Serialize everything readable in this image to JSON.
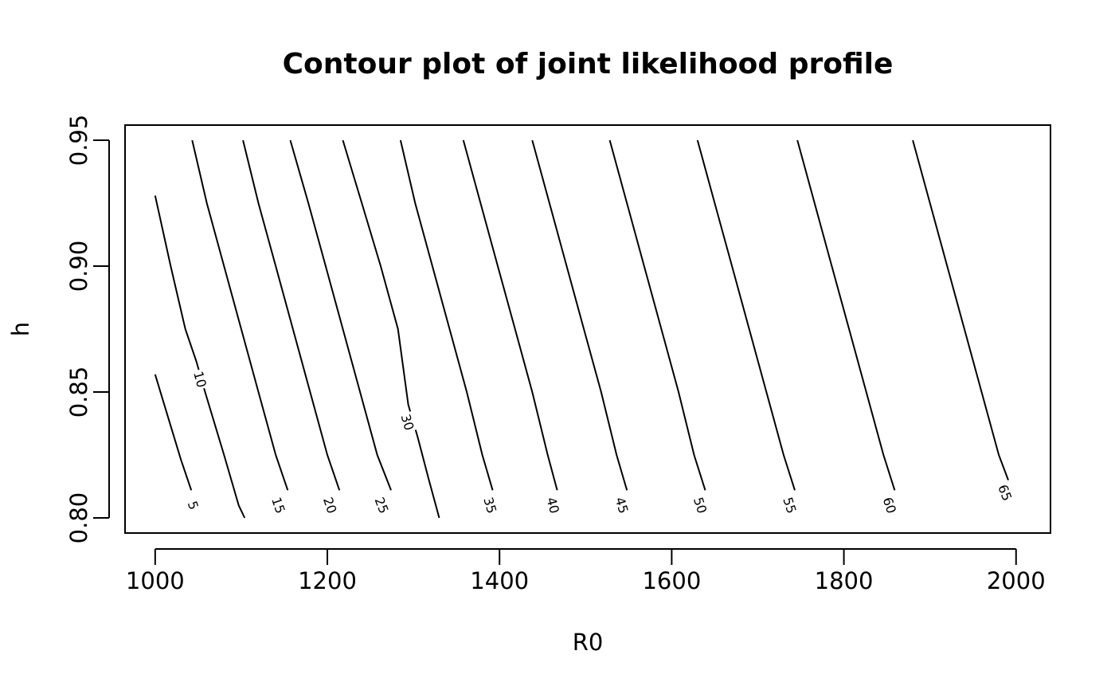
{
  "chart_data": {
    "type": "contour",
    "title": "Contour plot of joint likelihood profile",
    "xlabel": "R0",
    "ylabel": "h",
    "xlim": [
      965,
      2040
    ],
    "ylim": [
      0.794,
      0.956
    ],
    "xticks": [
      1000,
      1200,
      1400,
      1600,
      1800,
      2000
    ],
    "yticks": [
      0.8,
      0.85,
      0.9,
      0.95
    ],
    "xtick_labels": [
      "1000",
      "1200",
      "1400",
      "1600",
      "1800",
      "2000"
    ],
    "ytick_labels": [
      "0.80",
      "0.85",
      "0.90",
      "0.95"
    ],
    "grid": false,
    "contours": [
      {
        "level": 5,
        "label": "5",
        "label_at": [
          1044,
          0.805
        ],
        "points": [
          [
            1000,
            0.857
          ],
          [
            1015,
            0.84
          ],
          [
            1030,
            0.823
          ],
          [
            1042,
            0.811
          ]
        ]
      },
      {
        "level": 10,
        "label": "10",
        "label_at": [
          1052,
          0.855
        ],
        "points": [
          [
            1000,
            0.928
          ],
          [
            1018,
            0.9
          ],
          [
            1035,
            0.875
          ],
          [
            1048,
            0.862
          ],
          [
            1058,
            0.85
          ],
          [
            1080,
            0.825
          ],
          [
            1097,
            0.805
          ],
          [
            1104,
            0.8
          ]
        ]
      },
      {
        "level": 15,
        "label": "15",
        "label_at": [
          1143,
          0.805
        ],
        "points": [
          [
            1043,
            0.95
          ],
          [
            1060,
            0.925
          ],
          [
            1080,
            0.9
          ],
          [
            1100,
            0.875
          ],
          [
            1120,
            0.85
          ],
          [
            1140,
            0.825
          ],
          [
            1154,
            0.811
          ]
        ]
      },
      {
        "level": 20,
        "label": "20",
        "label_at": [
          1203,
          0.805
        ],
        "points": [
          [
            1102,
            0.95
          ],
          [
            1120,
            0.925
          ],
          [
            1140,
            0.9
          ],
          [
            1160,
            0.875
          ],
          [
            1180,
            0.85
          ],
          [
            1200,
            0.825
          ],
          [
            1214,
            0.811
          ]
        ]
      },
      {
        "level": 25,
        "label": "25",
        "label_at": [
          1263,
          0.805
        ],
        "points": [
          [
            1157,
            0.95
          ],
          [
            1178,
            0.925
          ],
          [
            1198,
            0.9
          ],
          [
            1218,
            0.875
          ],
          [
            1238,
            0.85
          ],
          [
            1258,
            0.825
          ],
          [
            1274,
            0.811
          ]
        ]
      },
      {
        "level": 30,
        "label": "30",
        "label_at": [
          1293,
          0.838
        ],
        "points": [
          [
            1218,
            0.95
          ],
          [
            1240,
            0.925
          ],
          [
            1262,
            0.9
          ],
          [
            1282,
            0.875
          ],
          [
            1294,
            0.845
          ],
          [
            1305,
            0.832
          ],
          [
            1318,
            0.815
          ],
          [
            1330,
            0.8
          ]
        ]
      },
      {
        "level": 35,
        "label": "35",
        "label_at": [
          1389,
          0.805
        ],
        "points": [
          [
            1285,
            0.95
          ],
          [
            1302,
            0.925
          ],
          [
            1322,
            0.9
          ],
          [
            1342,
            0.875
          ],
          [
            1362,
            0.85
          ],
          [
            1380,
            0.825
          ],
          [
            1392,
            0.811
          ]
        ]
      },
      {
        "level": 40,
        "label": "40",
        "label_at": [
          1462,
          0.805
        ],
        "points": [
          [
            1358,
            0.95
          ],
          [
            1378,
            0.925
          ],
          [
            1398,
            0.9
          ],
          [
            1418,
            0.875
          ],
          [
            1438,
            0.85
          ],
          [
            1456,
            0.825
          ],
          [
            1467,
            0.811
          ]
        ]
      },
      {
        "level": 45,
        "label": "45",
        "label_at": [
          1542,
          0.805
        ],
        "points": [
          [
            1438,
            0.95
          ],
          [
            1458,
            0.925
          ],
          [
            1478,
            0.9
          ],
          [
            1498,
            0.875
          ],
          [
            1518,
            0.85
          ],
          [
            1536,
            0.825
          ],
          [
            1548,
            0.811
          ]
        ]
      },
      {
        "level": 50,
        "label": "50",
        "label_at": [
          1633,
          0.805
        ],
        "points": [
          [
            1528,
            0.95
          ],
          [
            1548,
            0.925
          ],
          [
            1568,
            0.9
          ],
          [
            1588,
            0.875
          ],
          [
            1608,
            0.85
          ],
          [
            1626,
            0.825
          ],
          [
            1639,
            0.811
          ]
        ]
      },
      {
        "level": 55,
        "label": "55",
        "label_at": [
          1737,
          0.805
        ],
        "points": [
          [
            1630,
            0.95
          ],
          [
            1650,
            0.925
          ],
          [
            1670,
            0.9
          ],
          [
            1690,
            0.875
          ],
          [
            1710,
            0.85
          ],
          [
            1730,
            0.825
          ],
          [
            1743,
            0.811
          ]
        ]
      },
      {
        "level": 60,
        "label": "60",
        "label_at": [
          1853,
          0.805
        ],
        "points": [
          [
            1746,
            0.95
          ],
          [
            1766,
            0.925
          ],
          [
            1786,
            0.9
          ],
          [
            1806,
            0.875
          ],
          [
            1826,
            0.85
          ],
          [
            1846,
            0.825
          ],
          [
            1859,
            0.811
          ]
        ]
      },
      {
        "level": 65,
        "label": "65",
        "label_at": [
          1987,
          0.81
        ],
        "points": [
          [
            1880,
            0.95
          ],
          [
            1900,
            0.925
          ],
          [
            1920,
            0.9
          ],
          [
            1940,
            0.875
          ],
          [
            1960,
            0.85
          ],
          [
            1980,
            0.825
          ],
          [
            1991,
            0.815
          ]
        ]
      }
    ]
  }
}
